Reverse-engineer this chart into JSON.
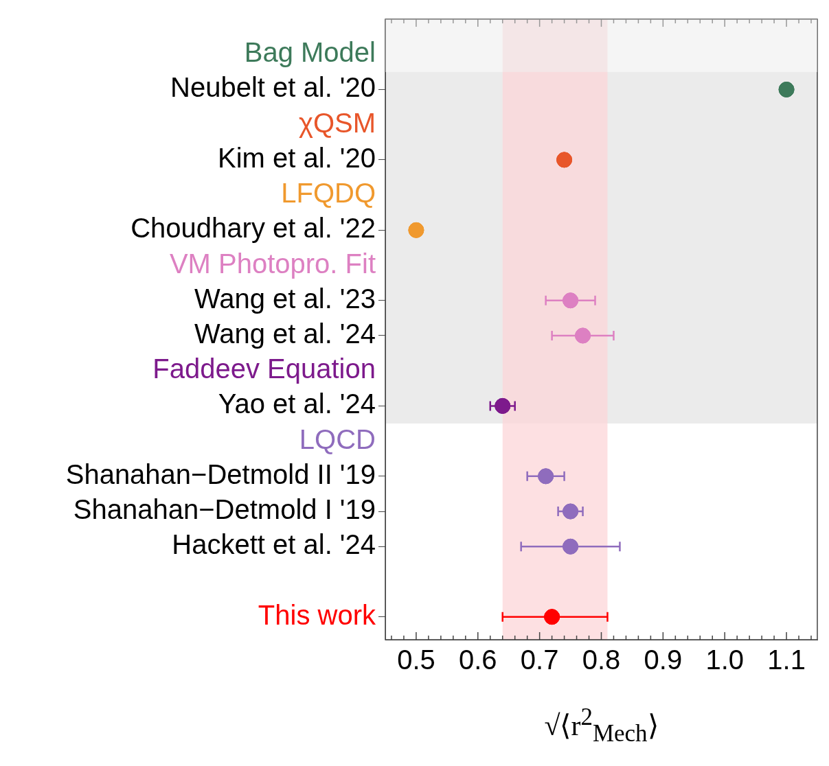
{
  "chart_data": {
    "type": "scatter",
    "orientation": "horizontal",
    "marker": "circle",
    "grid": false,
    "legend": false,
    "xlabel": "√⟨r$^{2}$$_{Mech}$⟩",
    "categories": [
      null,
      "Neubelt et al. '20",
      null,
      "Kim et al. '20",
      null,
      "Choudhary et al. '22",
      null,
      "Wang et al. '23",
      "Wang et al. '24",
      null,
      "Yao et al. '24",
      null,
      "Shanahan−Detmold II '19",
      "Shanahan−Detmold I '19",
      "Hackett et al. '24",
      null,
      null
    ],
    "xlim": [
      0.45,
      1.15
    ],
    "xticks": [
      {
        "value": 0.46,
        "label": null
      },
      {
        "value": 0.48,
        "label": null
      },
      0.5,
      {
        "value": 0.52,
        "label": null
      },
      {
        "value": 0.54,
        "label": null
      },
      {
        "value": 0.56,
        "label": null
      },
      {
        "value": 0.58,
        "label": null
      },
      0.6,
      {
        "value": 0.62,
        "label": null
      },
      {
        "value": 0.64,
        "label": null
      },
      {
        "value": 0.66,
        "label": null
      },
      {
        "value": 0.68,
        "label": null
      },
      0.7,
      {
        "value": 0.72,
        "label": null
      },
      {
        "value": 0.74,
        "label": null
      },
      {
        "value": 0.76,
        "label": null
      },
      {
        "value": 0.78,
        "label": null
      },
      0.8,
      {
        "value": 0.82,
        "label": null
      },
      {
        "value": 0.84,
        "label": null
      },
      {
        "value": 0.86,
        "label": null
      },
      {
        "value": 0.88,
        "label": null
      },
      0.9,
      {
        "value": 0.92,
        "label": null
      },
      {
        "value": 0.94,
        "label": null
      },
      {
        "value": 0.96,
        "label": null
      },
      {
        "value": 0.98,
        "label": null
      },
      {
        "value": 1,
        "label": "1.0"
      },
      {
        "value": 1.02,
        "label": null
      },
      {
        "value": 1.04,
        "label": null
      },
      {
        "value": 1.06,
        "label": null
      },
      {
        "value": 1.08,
        "label": null
      },
      1.1,
      {
        "value": 1.12,
        "label": null
      },
      {
        "value": 1.14,
        "label": null
      }
    ],
    "bands": [
      {
        "axis": "x",
        "from": 0.64,
        "to": 0.81,
        "color": "#fcd5d8"
      },
      {
        "axis": "y",
        "from": "Neubelt et al. '20",
        "to": "Yao et al. '24",
        "color": "#ebebeb"
      }
    ],
    "series": [
      {
        "name": "Bag Model",
        "color": "#3d7a5a",
        "values": [
          null,
          1.1,
          null,
          null,
          null,
          null,
          null,
          null,
          null,
          null,
          null,
          null,
          null,
          null,
          null,
          null,
          null
        ]
      },
      {
        "name": "χQSM",
        "color": "#e8562a",
        "values": [
          null,
          null,
          null,
          0.74,
          null,
          null,
          null,
          null,
          null,
          null,
          null,
          null,
          null,
          null,
          null,
          null,
          null
        ]
      },
      {
        "name": "LFQDQ",
        "color": "#f0992e",
        "values": [
          null,
          null,
          null,
          null,
          null,
          0.5,
          null,
          null,
          null,
          null,
          null,
          null,
          null,
          null,
          null,
          null,
          null
        ]
      },
      {
        "name": "VM Photopro. Fit",
        "color": "#dd80c2",
        "values": [
          null,
          null,
          null,
          null,
          null,
          null,
          null,
          0.75,
          0.77,
          null,
          null,
          null,
          null,
          null,
          null,
          null,
          null
        ],
        "errors": [
          null,
          null,
          null,
          null,
          null,
          null,
          null,
          [
            0.71,
            0.79
          ],
          [
            0.72,
            0.82
          ],
          null,
          null,
          null,
          null,
          null,
          null,
          null,
          null
        ]
      },
      {
        "name": "Faddeev Equation",
        "color": "#7d1a8c",
        "values": [
          null,
          null,
          null,
          null,
          null,
          null,
          null,
          null,
          null,
          null,
          0.64,
          null,
          null,
          null,
          null,
          null,
          null
        ],
        "errors": [
          null,
          null,
          null,
          null,
          null,
          null,
          null,
          null,
          null,
          null,
          [
            0.62,
            0.66
          ],
          null,
          null,
          null,
          null,
          null,
          null
        ]
      },
      {
        "name": "LQCD",
        "color": "#8f6cbd",
        "values": [
          null,
          null,
          null,
          null,
          null,
          null,
          null,
          null,
          null,
          null,
          null,
          null,
          0.71,
          0.75,
          0.75,
          null,
          null
        ],
        "errors": [
          null,
          null,
          null,
          null,
          null,
          null,
          null,
          null,
          null,
          null,
          null,
          null,
          [
            0.68,
            0.74
          ],
          [
            0.73,
            0.77
          ],
          [
            0.67,
            0.83
          ],
          null,
          null
        ]
      },
      {
        "name": "This work",
        "color": "#ff0000",
        "values": [
          null,
          null,
          null,
          null,
          null,
          null,
          null,
          null,
          null,
          null,
          null,
          null,
          null,
          null,
          null,
          null,
          0.72
        ],
        "errors": [
          null,
          null,
          null,
          null,
          null,
          null,
          null,
          null,
          null,
          null,
          null,
          null,
          null,
          null,
          null,
          null,
          [
            0.64,
            0.81
          ]
        ]
      }
    ]
  }
}
